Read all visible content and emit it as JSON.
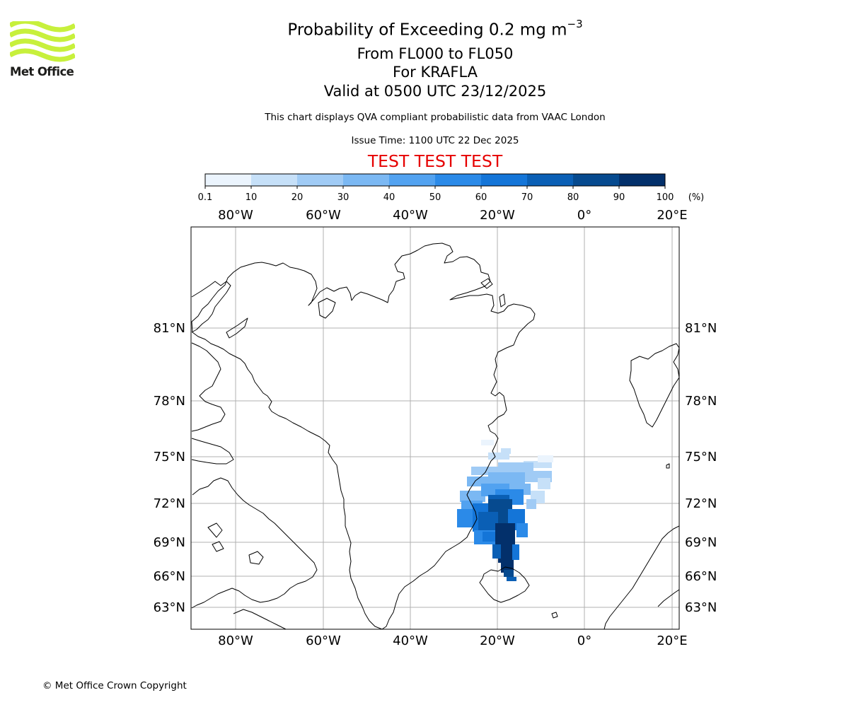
{
  "logo": {
    "name": "Met Office",
    "colors": {
      "waves": "#c7f03c",
      "text": "#1d1d1b"
    }
  },
  "header": {
    "title_main": "Probability of Exceeding 0.2 mg m",
    "title_sup": "−3",
    "flight_levels": "From FL000 to FL050",
    "volcano": "For KRAFLA",
    "valid_time": "Valid at 0500 UTC 23/12/2025",
    "description": "This chart displays QVA compliant probabilistic data from VAAC London",
    "issue_time": "Issue Time: 1100 UTC 22 Dec 2025",
    "test_banner": "TEST TEST TEST",
    "test_banner_color": "#e60000"
  },
  "colorbar": {
    "ticks": [
      "0.1",
      "10",
      "20",
      "30",
      "40",
      "50",
      "60",
      "70",
      "80",
      "90",
      "100"
    ],
    "unit": "(%)",
    "colors": [
      "#ebf4fd",
      "#c6e0f8",
      "#a0cbf5",
      "#7bb8f3",
      "#52a2f0",
      "#2b8ae8",
      "#1475d8",
      "#0a5fb5",
      "#064a8f",
      "#03306b"
    ]
  },
  "map": {
    "lon_labels": [
      "80°W",
      "60°W",
      "40°W",
      "20°W",
      "0°",
      "20°E"
    ],
    "lat_labels": [
      "81°N",
      "78°N",
      "75°N",
      "72°N",
      "69°N",
      "66°N",
      "63°N"
    ],
    "grid_color": "#b0b0b0",
    "coast_color": "#000000"
  },
  "footer": {
    "copyright": "© Met Office Crown Copyright"
  }
}
